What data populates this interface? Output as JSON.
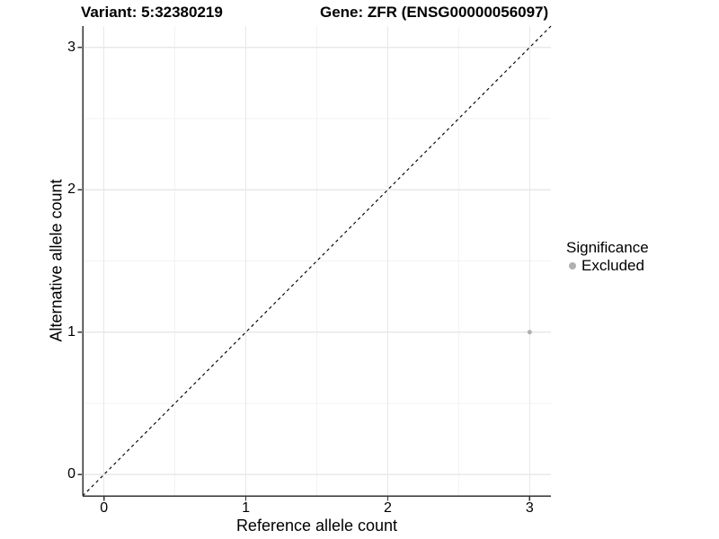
{
  "chart_data": {
    "type": "scatter",
    "title_left": "Variant: 5:32380219",
    "title_right": "Gene: ZFR (ENSG00000056097)",
    "xlabel": "Reference allele count",
    "ylabel": "Alternative allele count",
    "xlim": [
      -0.15,
      3.15
    ],
    "ylim": [
      -0.15,
      3.15
    ],
    "xticks": [
      0,
      1,
      2,
      3
    ],
    "yticks": [
      0,
      1,
      2,
      3
    ],
    "xminor": [
      0.5,
      1.5,
      2.5
    ],
    "yminor": [
      0.5,
      1.5,
      2.5
    ],
    "grid": "major+minor",
    "legend": {
      "position": "right",
      "title": "Significance",
      "items": [
        {
          "label": "Excluded",
          "color": "#b0b0b0"
        }
      ]
    },
    "series": [
      {
        "name": "Excluded",
        "color": "#b0b0b0",
        "marker_px": 5,
        "points": [
          {
            "x": 3,
            "y": 1
          }
        ]
      }
    ],
    "reference_line": {
      "kind": "identity y=x",
      "style": "dashed",
      "color": "#000000"
    }
  },
  "colors": {
    "axis_line": "#333333",
    "grid_major": "#e8e8e8",
    "grid_minor": "#f3f3f3",
    "tick_mark": "#333333",
    "point_gray": "#b0b0b0"
  }
}
